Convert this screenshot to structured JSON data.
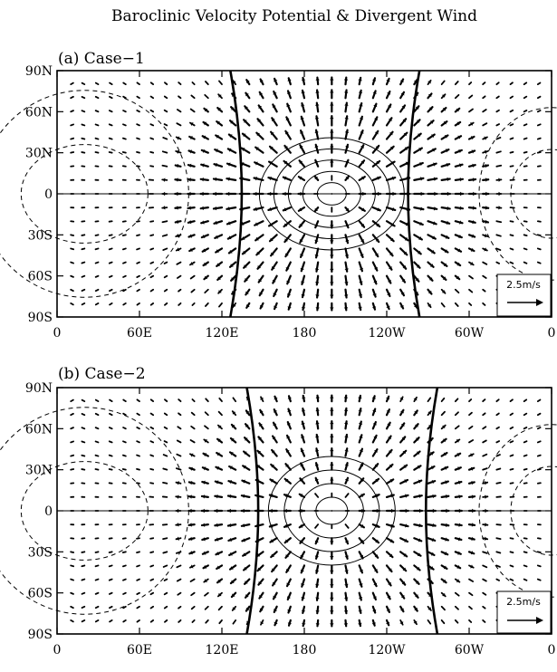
{
  "title": "Baroclinic Velocity Potential & Divergent Wind",
  "chart_data": [
    {
      "type": "vector",
      "panel_label": "(a) Case−1",
      "x_ticks": [
        "0",
        "60E",
        "120E",
        "180",
        "120W",
        "60W",
        "0"
      ],
      "y_ticks": [
        "90N",
        "60N",
        "30N",
        "0",
        "30S",
        "60S",
        "90S"
      ],
      "xlim": [
        0,
        360
      ],
      "ylim": [
        -90,
        90
      ],
      "reference_vector": "2.5m/s",
      "divergence_center": {
        "lon": 200,
        "lat": 0
      },
      "zero_contour_lon": [
        128,
        262
      ],
      "negative_contours_solid": 5,
      "positive_contours_dashed": true
    },
    {
      "type": "vector",
      "panel_label": "(b) Case−2",
      "x_ticks": [
        "0",
        "60E",
        "120E",
        "180",
        "120W",
        "60W",
        "0"
      ],
      "y_ticks": [
        "90N",
        "60N",
        "30N",
        "0",
        "30S",
        "60S",
        "90S"
      ],
      "xlim": [
        0,
        360
      ],
      "ylim": [
        -90,
        90
      ],
      "reference_vector": "2.5m/s",
      "divergence_center": {
        "lon": 200,
        "lat": 0
      },
      "zero_contour_lon": [
        140,
        275
      ],
      "negative_contours_solid": 4,
      "positive_contours_dashed": true
    }
  ]
}
